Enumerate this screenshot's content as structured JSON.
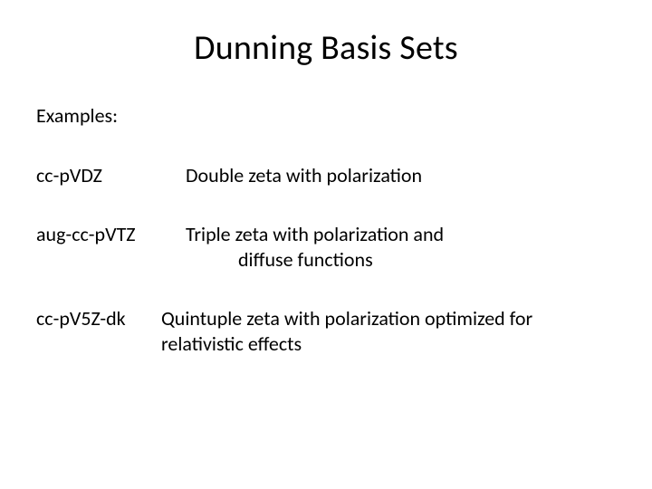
{
  "title": "Dunning Basis Sets",
  "lead": "Examples:",
  "items": [
    {
      "name": "cc-pVDZ",
      "desc": "Double zeta with polarization"
    },
    {
      "name": "aug-cc-pVTZ",
      "desc": "Triple zeta with polarization and",
      "cont": "diffuse functions"
    },
    {
      "name": "cc-pV5Z-dk",
      "desc": "Quintuple zeta with polarization optimized for relativistic effects"
    }
  ]
}
